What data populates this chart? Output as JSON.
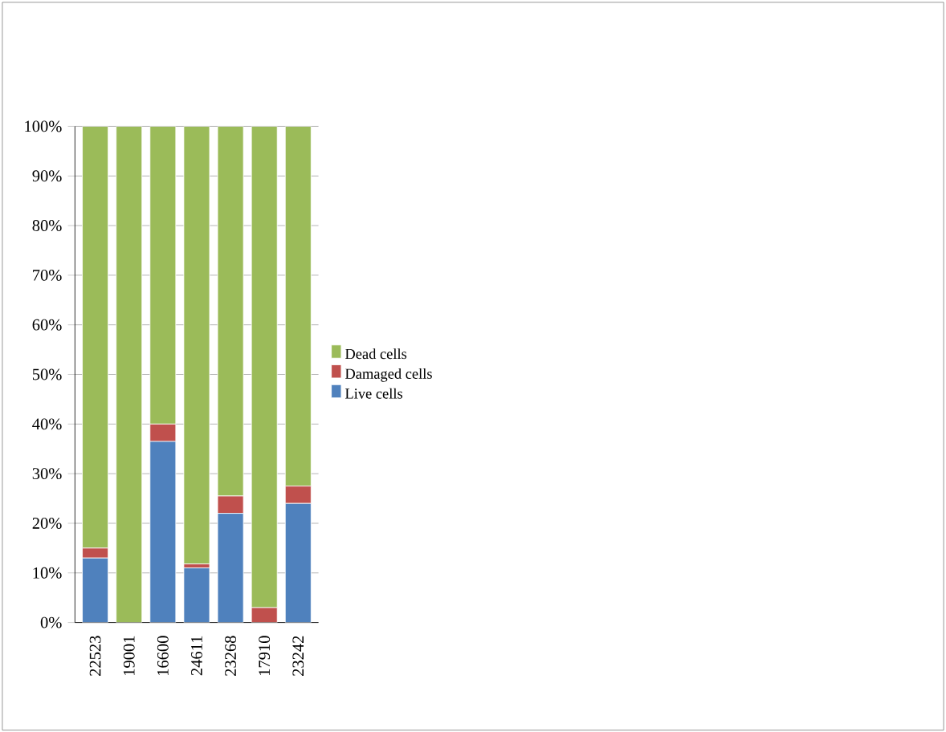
{
  "chart_data": {
    "type": "bar",
    "stacked": true,
    "categories": [
      "22523",
      "19001",
      "16600",
      "24611",
      "23268",
      "17910",
      "23242"
    ],
    "series": [
      {
        "name": "Live cells",
        "color": "#4f81bd",
        "values": [
          13,
          0,
          36.5,
          11,
          22,
          0,
          24
        ]
      },
      {
        "name": "Damaged cells",
        "color": "#c0504d",
        "values": [
          2,
          0,
          3.5,
          0.8,
          3.5,
          3,
          3.5
        ]
      },
      {
        "name": "Dead cells",
        "color": "#9bbb59",
        "values": [
          85,
          100,
          60,
          88.2,
          74.5,
          97,
          72.5
        ]
      }
    ],
    "ylim": [
      0,
      100
    ],
    "yticks": [
      {
        "value": 0,
        "label": "0%"
      },
      {
        "value": 10,
        "label": "10%"
      },
      {
        "value": 20,
        "label": "20%"
      },
      {
        "value": 30,
        "label": "30%"
      },
      {
        "value": 40,
        "label": "40%"
      },
      {
        "value": 50,
        "label": "50%"
      },
      {
        "value": 60,
        "label": "60%"
      },
      {
        "value": 70,
        "label": "70%"
      },
      {
        "value": 80,
        "label": "80%"
      },
      {
        "value": 90,
        "label": "90%"
      },
      {
        "value": 100,
        "label": "100%"
      }
    ],
    "grid": "y",
    "legend": "right"
  }
}
